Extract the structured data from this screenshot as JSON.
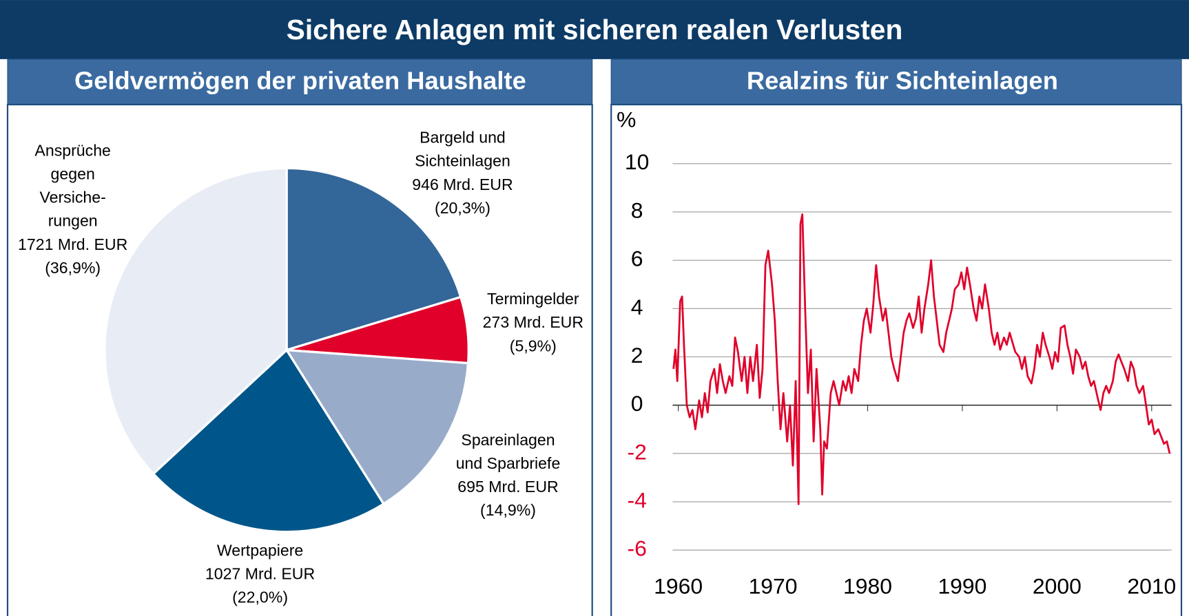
{
  "title": "Sichere Anlagen mit sicheren realen Verlusten",
  "chart_data": [
    {
      "type": "pie",
      "title": "Geldvermögen der privaten Haushalte",
      "categories": [
        [
          "Bargeld und",
          "Sichteinlagen"
        ],
        [
          "Termingelder"
        ],
        [
          "Spareinlagen",
          "und Sparbriefe"
        ],
        [
          "Wertpapiere"
        ],
        [
          "Ansprüche",
          "gegen",
          "Versiche-",
          "rungen"
        ]
      ],
      "values": [
        946,
        273,
        695,
        1027,
        1721
      ],
      "value_labels": [
        "946 Mrd. EUR",
        "273 Mrd. EUR",
        "695 Mrd. EUR",
        "1027 Mrd. EUR",
        "1721 Mrd. EUR"
      ],
      "shares": [
        20.3,
        5.9,
        14.9,
        22.0,
        36.9
      ],
      "share_labels": [
        "(20,3%)",
        "(5,9%)",
        "(14,9%)",
        "(22,0%)",
        "(36,9%)"
      ],
      "colors": [
        "#336699",
        "#e0002a",
        "#98acca",
        "#00568a",
        "#e8ecf5"
      ]
    },
    {
      "type": "line",
      "title": "Realzins für Sichteinlagen",
      "ylabel": "%",
      "x": [
        1959.5,
        1959.7,
        1959.9,
        1960.2,
        1960.4,
        1960.6,
        1960.9,
        1961.2,
        1961.5,
        1961.8,
        1962.2,
        1962.5,
        1962.8,
        1963.1,
        1963.4,
        1963.8,
        1964.1,
        1964.4,
        1964.7,
        1965.0,
        1965.4,
        1965.7,
        1966.0,
        1966.3,
        1966.7,
        1967.0,
        1967.3,
        1967.6,
        1967.9,
        1968.3,
        1968.6,
        1968.9,
        1969.2,
        1969.5,
        1969.9,
        1970.2,
        1970.5,
        1970.8,
        1971.1,
        1971.5,
        1971.8,
        1972.1,
        1972.4,
        1972.7,
        1972.9,
        1973.1,
        1973.4,
        1973.7,
        1974.0,
        1974.3,
        1974.6,
        1975.0,
        1975.2,
        1975.4,
        1975.7,
        1976.1,
        1976.4,
        1976.7,
        1977.0,
        1977.4,
        1977.7,
        1978.0,
        1978.3,
        1978.6,
        1979.0,
        1979.3,
        1979.6,
        1979.9,
        1980.3,
        1980.6,
        1980.9,
        1981.2,
        1981.6,
        1981.9,
        1982.2,
        1982.5,
        1982.8,
        1983.2,
        1983.5,
        1983.8,
        1984.1,
        1984.4,
        1984.8,
        1985.1,
        1985.4,
        1985.7,
        1986.0,
        1986.4,
        1986.7,
        1987.0,
        1987.3,
        1987.6,
        1988.0,
        1988.3,
        1988.6,
        1988.9,
        1989.2,
        1989.6,
        1989.9,
        1990.2,
        1990.5,
        1990.8,
        1991.2,
        1991.5,
        1991.8,
        1992.1,
        1992.4,
        1992.8,
        1993.1,
        1993.4,
        1993.7,
        1994.0,
        1994.4,
        1994.7,
        1995.0,
        1995.3,
        1995.6,
        1996.0,
        1996.3,
        1996.6,
        1996.9,
        1997.3,
        1997.6,
        1997.9,
        1998.2,
        1998.5,
        1998.8,
        1999.2,
        1999.5,
        1999.8,
        2000.1,
        2000.4,
        2000.8,
        2001.1,
        2001.4,
        2001.7,
        2002.0,
        2002.4,
        2002.7,
        2003.0,
        2003.3,
        2003.6,
        2003.9,
        2004.3,
        2004.6,
        2004.9,
        2005.2,
        2005.5,
        2005.9,
        2006.2,
        2006.5,
        2006.8,
        2007.1,
        2007.5,
        2007.8,
        2008.1,
        2008.4,
        2008.7,
        2009.1,
        2009.4,
        2009.7,
        2010.0,
        2010.3,
        2010.7,
        2011.0,
        2011.3,
        2011.6,
        2011.9
      ],
      "values": [
        1.5,
        2.3,
        1.0,
        4.3,
        4.5,
        2.5,
        0.0,
        -0.5,
        -0.2,
        -1.0,
        0.2,
        -0.5,
        0.5,
        -0.3,
        1.0,
        1.5,
        0.5,
        1.7,
        1.0,
        0.5,
        1.2,
        0.8,
        2.8,
        2.2,
        1.0,
        2.0,
        0.5,
        2.0,
        1.0,
        2.5,
        0.3,
        1.5,
        5.8,
        6.4,
        5.0,
        3.5,
        1.0,
        -1.0,
        0.5,
        -1.5,
        0.0,
        -2.5,
        1.0,
        -4.1,
        7.5,
        7.9,
        4.0,
        0.5,
        2.3,
        -1.5,
        1.5,
        -1.0,
        -3.7,
        -1.5,
        -1.8,
        0.5,
        1.0,
        0.5,
        0.0,
        1.0,
        0.6,
        1.2,
        0.5,
        1.5,
        1.0,
        2.5,
        3.5,
        4.0,
        3.0,
        4.2,
        5.8,
        4.5,
        3.5,
        4.0,
        3.0,
        2.0,
        1.5,
        1.0,
        2.0,
        3.0,
        3.5,
        3.8,
        3.2,
        3.6,
        4.5,
        3.0,
        4.0,
        5.0,
        6.0,
        4.5,
        3.5,
        2.5,
        2.2,
        3.0,
        3.5,
        4.0,
        4.8,
        5.0,
        5.5,
        4.8,
        5.7,
        5.0,
        4.0,
        3.5,
        4.5,
        4.0,
        5.0,
        4.0,
        3.0,
        2.5,
        3.0,
        2.3,
        2.8,
        2.5,
        3.0,
        2.6,
        2.2,
        2.0,
        1.5,
        2.0,
        1.2,
        0.9,
        1.5,
        2.5,
        2.0,
        3.0,
        2.5,
        2.0,
        1.5,
        2.2,
        1.8,
        3.2,
        3.3,
        2.5,
        2.0,
        1.3,
        2.3,
        2.0,
        1.5,
        1.8,
        1.2,
        0.8,
        1.0,
        0.3,
        -0.2,
        0.5,
        0.8,
        0.5,
        1.0,
        1.8,
        2.1,
        1.8,
        1.5,
        1.0,
        1.8,
        1.5,
        0.8,
        0.5,
        0.8,
        0.0,
        -0.8,
        -0.6,
        -1.2,
        -1.0,
        -1.3,
        -1.6,
        -1.5,
        -2.0
      ],
      "color": "#e0002a",
      "xlim": [
        1959.4,
        2012.1
      ],
      "xticks": [
        1960,
        1970,
        1980,
        1990,
        2000,
        2010
      ],
      "ylim": [
        -6,
        10
      ],
      "yticks": [
        -6,
        -4,
        -2,
        0,
        2,
        4,
        6,
        8,
        10
      ],
      "negative_tick_color": "#e0002a",
      "grid": true
    }
  ]
}
